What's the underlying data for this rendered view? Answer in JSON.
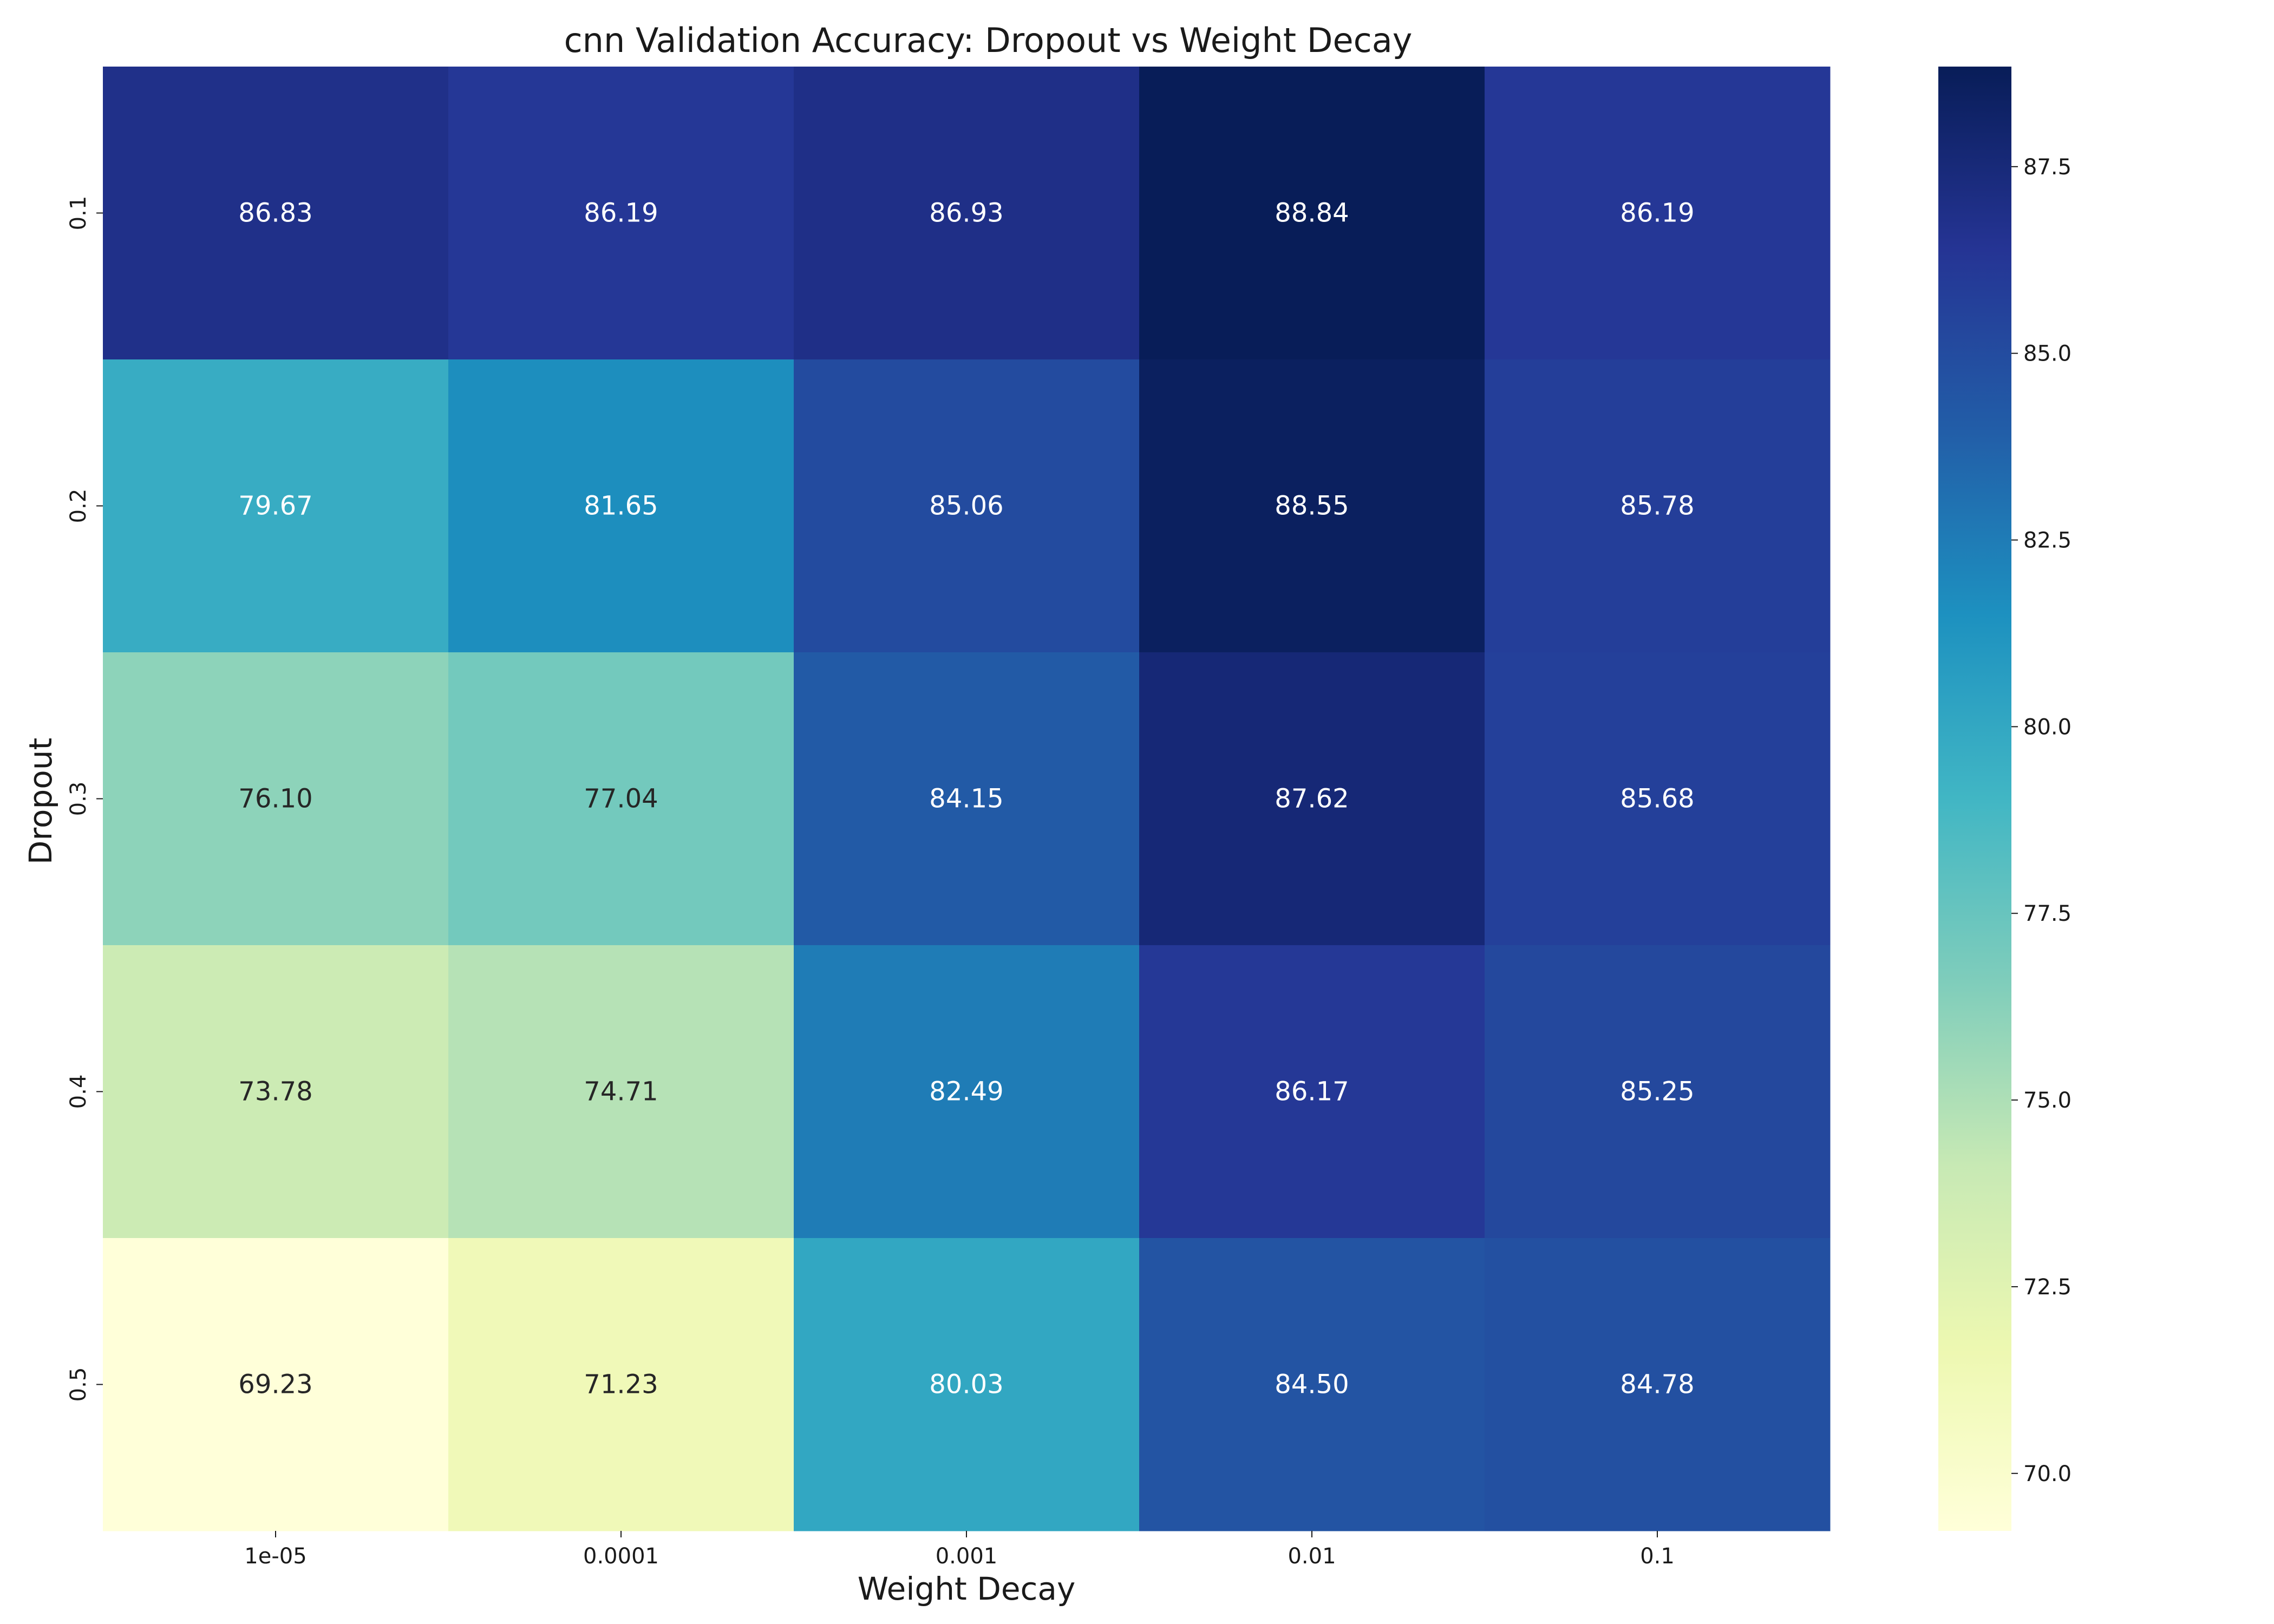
{
  "chart_data": {
    "type": "heatmap",
    "title": "cnn Validation Accuracy: Dropout vs Weight Decay",
    "xlabel": "Weight Decay",
    "ylabel": "Dropout",
    "x_categories": [
      "1e-05",
      "0.0001",
      "0.001",
      "0.01",
      "0.1"
    ],
    "y_categories": [
      "0.1",
      "0.2",
      "0.3",
      "0.4",
      "0.5"
    ],
    "values": [
      [
        86.83,
        86.19,
        86.93,
        88.84,
        86.19
      ],
      [
        79.67,
        81.65,
        85.06,
        88.55,
        85.78
      ],
      [
        76.1,
        77.04,
        84.15,
        87.62,
        85.68
      ],
      [
        73.78,
        74.71,
        82.49,
        86.17,
        85.25
      ],
      [
        69.23,
        71.23,
        80.03,
        84.5,
        84.78
      ]
    ],
    "cell_labels": [
      [
        "86.83",
        "86.19",
        "86.93",
        "88.84",
        "86.19"
      ],
      [
        "79.67",
        "81.65",
        "85.06",
        "88.55",
        "85.78"
      ],
      [
        "76.10",
        "77.04",
        "84.15",
        "87.62",
        "85.68"
      ],
      [
        "73.78",
        "74.71",
        "82.49",
        "86.17",
        "85.25"
      ],
      [
        "69.23",
        "71.23",
        "80.03",
        "84.50",
        "84.78"
      ]
    ],
    "colorbar": {
      "colormap": "YlGnBu",
      "range": [
        69.23,
        88.84
      ],
      "ticks": [
        70.0,
        72.5,
        75.0,
        77.5,
        80.0,
        82.5,
        85.0,
        87.5
      ],
      "tick_labels": [
        "70.0",
        "72.5",
        "75.0",
        "77.5",
        "80.0",
        "82.5",
        "85.0",
        "87.5"
      ]
    },
    "colors": {
      "stops": [
        "#ffffd9",
        "#edf8b1",
        "#c7e9b4",
        "#7fcdbb",
        "#41b6c4",
        "#1d91c0",
        "#225ea8",
        "#253494",
        "#081d58"
      ],
      "text_dark": "#262626",
      "text_light": "#ffffff"
    }
  }
}
